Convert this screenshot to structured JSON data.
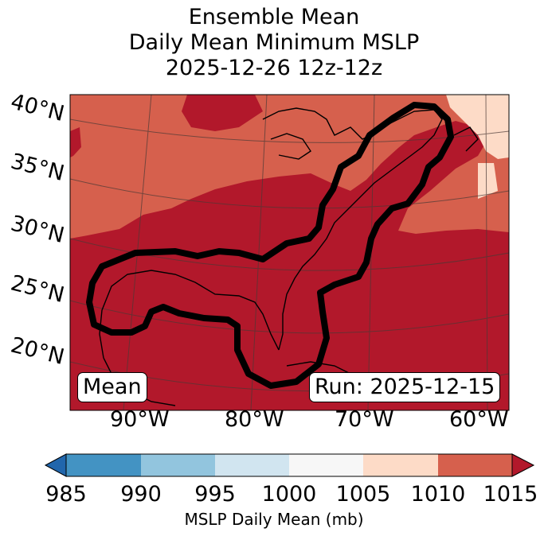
{
  "title": {
    "line1": "Ensemble Mean",
    "line2": "Daily Mean Minimum MSLP",
    "line3": "2025-12-26 12z-12z"
  },
  "lat_labels": [
    "40°N",
    "35°N",
    "30°N",
    "25°N",
    "20°N"
  ],
  "lon_labels": [
    "90°W",
    "80°W",
    "70°W",
    "60°W"
  ],
  "mean_label": "Mean",
  "run_label": "Run: 2025-12-15",
  "colorbar": {
    "label": "MSLP Daily Mean (mb)",
    "ticks": [
      "985",
      "990",
      "995",
      "1000",
      "1005",
      "1010",
      "1015"
    ],
    "bins": [
      {
        "range": "<985",
        "color": "#2166ac"
      },
      {
        "range": "985-990",
        "color": "#4393c3"
      },
      {
        "range": "990-995",
        "color": "#92c5de"
      },
      {
        "range": "995-1000",
        "color": "#d1e5f0"
      },
      {
        "range": "1000-1005",
        "color": "#f7f7f7"
      },
      {
        "range": "1005-1010",
        "color": "#fddbc7"
      },
      {
        "range": "1010-1015",
        "color": "#d6604d"
      },
      {
        "range": ">1015",
        "color": "#b2182b"
      }
    ]
  }
}
